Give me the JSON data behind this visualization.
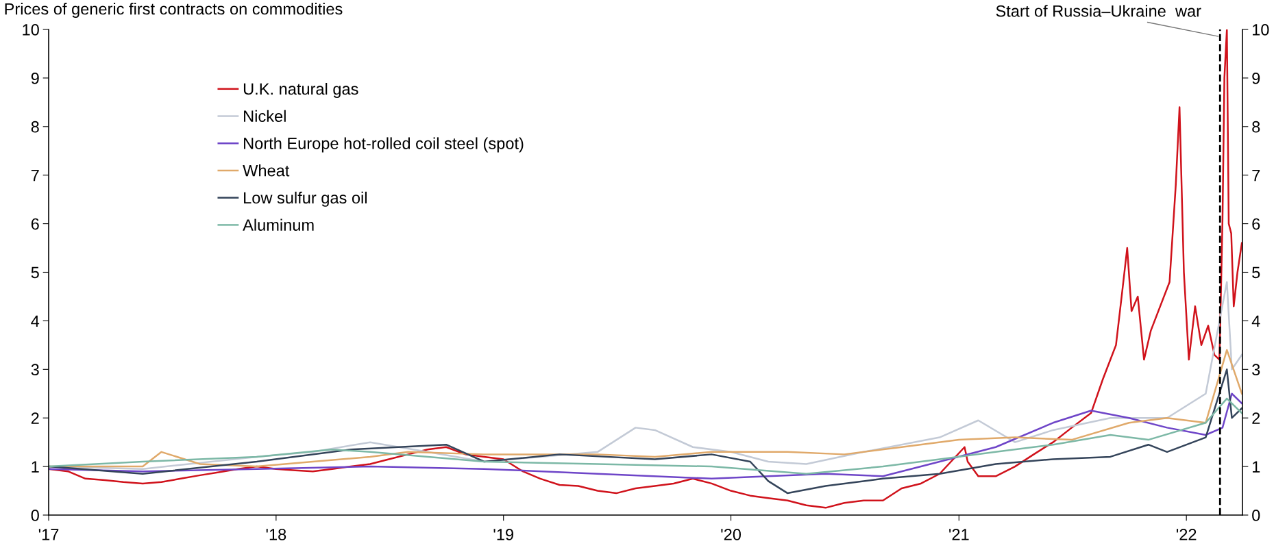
{
  "chart_data": {
    "type": "line",
    "subtitle": "Prices of generic first contracts on commodities",
    "xlim": [
      "2017-01-01",
      "2022-04-01"
    ],
    "xticks": [
      {
        "value": "2017-01-01",
        "label": "'17"
      },
      {
        "value": "2018-01-01",
        "label": "'18"
      },
      {
        "value": "2019-01-01",
        "label": "'19"
      },
      {
        "value": "2020-01-01",
        "label": "'20"
      },
      {
        "value": "2021-01-01",
        "label": "'21"
      },
      {
        "value": "2022-01-01",
        "label": "'22"
      }
    ],
    "ylim": [
      0,
      10
    ],
    "yticks": [
      0,
      1,
      2,
      3,
      4,
      5,
      6,
      7,
      8,
      9,
      10
    ],
    "y2lim": [
      0,
      10
    ],
    "y2ticks": [
      0,
      1,
      2,
      3,
      4,
      5,
      6,
      7,
      8,
      9,
      10
    ],
    "grid": false,
    "legend": "top left",
    "line_style": "solid",
    "marker": "none",
    "ref_lines": [
      {
        "axis": "x",
        "value": "2022-02-24",
        "label": "Start of Russia–Ukraine  war",
        "color": "#000000",
        "line_style": "dashed"
      }
    ],
    "series": [
      {
        "name": "U.K. natural gas",
        "color": "#d0121b",
        "x": [
          "2017-01",
          "2017-02",
          "2017-03",
          "2017-04",
          "2017-05",
          "2017-06",
          "2017-07",
          "2017-08",
          "2017-09",
          "2017-10",
          "2017-11",
          "2017-12",
          "2018-01",
          "2018-02",
          "2018-03",
          "2018-04",
          "2018-05",
          "2018-06",
          "2018-07",
          "2018-08",
          "2018-09",
          "2018-10",
          "2018-11",
          "2018-12",
          "2019-01",
          "2019-02",
          "2019-03",
          "2019-04",
          "2019-05",
          "2019-06",
          "2019-07",
          "2019-08",
          "2019-09",
          "2019-10",
          "2019-11",
          "2019-12",
          "2020-01",
          "2020-02",
          "2020-03",
          "2020-04",
          "2020-05",
          "2020-06",
          "2020-07",
          "2020-08",
          "2020-09",
          "2020-10",
          "2020-11",
          "2020-12",
          "2021-01-10",
          "2021-01-15",
          "2021-02",
          "2021-03",
          "2021-04",
          "2021-05",
          "2021-06",
          "2021-07",
          "2021-08",
          "2021-08-20",
          "2021-09-10",
          "2021-09-20",
          "2021-09-28",
          "2021-10-05",
          "2021-10-15",
          "2021-10-25",
          "2021-11-05",
          "2021-11-20",
          "2021-12-05",
          "2021-12-15",
          "2021-12-21",
          "2021-12-28",
          "2022-01-05",
          "2022-01-15",
          "2022-01-25",
          "2022-02-05",
          "2022-02-15",
          "2022-02-23",
          "2022-02-25",
          "2022-02-28",
          "2022-03-03",
          "2022-03-07",
          "2022-03-10",
          "2022-03-14",
          "2022-03-18",
          "2022-03-24",
          "2022-03-31"
        ],
        "values": [
          0.95,
          0.9,
          0.75,
          0.72,
          0.68,
          0.65,
          0.68,
          0.75,
          0.82,
          0.88,
          0.95,
          1.0,
          0.95,
          0.92,
          0.9,
          0.95,
          1.0,
          1.05,
          1.15,
          1.25,
          1.35,
          1.4,
          1.25,
          1.2,
          1.15,
          0.9,
          0.75,
          0.62,
          0.6,
          0.5,
          0.45,
          0.55,
          0.6,
          0.65,
          0.75,
          0.65,
          0.5,
          0.4,
          0.35,
          0.3,
          0.2,
          0.15,
          0.25,
          0.3,
          0.3,
          0.55,
          0.65,
          0.85,
          1.4,
          1.1,
          0.8,
          0.8,
          1.0,
          1.25,
          1.5,
          1.8,
          2.1,
          2.8,
          3.5,
          4.6,
          5.5,
          4.2,
          4.5,
          3.2,
          3.8,
          4.3,
          4.8,
          6.8,
          8.4,
          5.0,
          3.2,
          4.3,
          3.5,
          3.9,
          3.3,
          3.2,
          4.3,
          6.1,
          9.0,
          10.0,
          6.0,
          5.8,
          4.3,
          5.0,
          5.6
        ]
      },
      {
        "name": "Nickel",
        "color": "#c3cad6",
        "x": [
          "2017-01",
          "2017-06",
          "2017-12",
          "2018-03",
          "2018-06",
          "2018-09",
          "2018-12",
          "2019-03",
          "2019-06",
          "2019-08",
          "2019-09",
          "2019-11",
          "2020-01",
          "2020-03",
          "2020-05",
          "2020-08",
          "2020-12",
          "2021-02",
          "2021-04",
          "2021-06",
          "2021-09",
          "2021-12",
          "2022-02",
          "2022-03-07",
          "2022-03-15",
          "2022-03-31"
        ],
        "values": [
          1.0,
          0.95,
          1.2,
          1.3,
          1.5,
          1.3,
          1.1,
          1.2,
          1.3,
          1.8,
          1.75,
          1.4,
          1.3,
          1.1,
          1.05,
          1.3,
          1.6,
          1.95,
          1.5,
          1.75,
          2.0,
          2.0,
          2.5,
          4.8,
          3.0,
          3.3
        ]
      },
      {
        "name": "North Europe hot-rolled coil steel (spot)",
        "color": "#6e45c8",
        "x": [
          "2017-01",
          "2017-06",
          "2017-12",
          "2018-06",
          "2018-12",
          "2019-06",
          "2019-12",
          "2020-06",
          "2020-09",
          "2020-12",
          "2021-03",
          "2021-06",
          "2021-08",
          "2021-10",
          "2021-12",
          "2022-02",
          "2022-02-28",
          "2022-03-15",
          "2022-03-31"
        ],
        "values": [
          0.95,
          0.9,
          0.95,
          1.0,
          0.95,
          0.85,
          0.75,
          0.85,
          0.8,
          1.1,
          1.4,
          1.9,
          2.15,
          2.0,
          1.8,
          1.65,
          1.8,
          2.5,
          2.3
        ]
      },
      {
        "name": "Wheat",
        "color": "#e0a96a",
        "x": [
          "2017-01",
          "2017-06",
          "2017-07",
          "2017-09",
          "2017-12",
          "2018-03",
          "2018-06",
          "2018-08",
          "2018-12",
          "2019-06",
          "2019-09",
          "2019-12",
          "2020-04",
          "2020-07",
          "2020-10",
          "2021-01",
          "2021-04",
          "2021-07",
          "2021-10",
          "2021-12",
          "2022-02",
          "2022-03-07",
          "2022-03-31"
        ],
        "values": [
          1.0,
          1.0,
          1.3,
          1.05,
          1.0,
          1.1,
          1.2,
          1.3,
          1.25,
          1.25,
          1.2,
          1.3,
          1.3,
          1.25,
          1.4,
          1.55,
          1.6,
          1.55,
          1.9,
          2.0,
          1.9,
          3.4,
          2.5
        ]
      },
      {
        "name": "Low sulfur gas oil",
        "color": "#34445a",
        "x": [
          "2017-01",
          "2017-06",
          "2017-12",
          "2018-05",
          "2018-10",
          "2018-12",
          "2019-04",
          "2019-09",
          "2019-12",
          "2020-02",
          "2020-03",
          "2020-04",
          "2020-06",
          "2020-09",
          "2020-12",
          "2021-03",
          "2021-06",
          "2021-09",
          "2021-11",
          "2021-12",
          "2022-02",
          "2022-03-07",
          "2022-03-15",
          "2022-03-31"
        ],
        "values": [
          1.0,
          0.85,
          1.1,
          1.35,
          1.45,
          1.1,
          1.25,
          1.15,
          1.25,
          1.1,
          0.7,
          0.45,
          0.6,
          0.75,
          0.85,
          1.05,
          1.15,
          1.2,
          1.45,
          1.3,
          1.6,
          3.0,
          2.0,
          2.2
        ]
      },
      {
        "name": "Aluminum",
        "color": "#7cb8a6",
        "x": [
          "2017-01",
          "2017-06",
          "2017-12",
          "2018-04",
          "2018-06",
          "2018-12",
          "2019-06",
          "2019-12",
          "2020-05",
          "2020-09",
          "2020-12",
          "2021-03",
          "2021-06",
          "2021-09",
          "2021-11",
          "2022-02",
          "2022-03-07",
          "2022-03-31"
        ],
        "values": [
          1.0,
          1.1,
          1.2,
          1.35,
          1.3,
          1.1,
          1.05,
          1.0,
          0.85,
          1.0,
          1.15,
          1.3,
          1.45,
          1.65,
          1.55,
          1.9,
          2.4,
          2.1
        ]
      }
    ]
  }
}
